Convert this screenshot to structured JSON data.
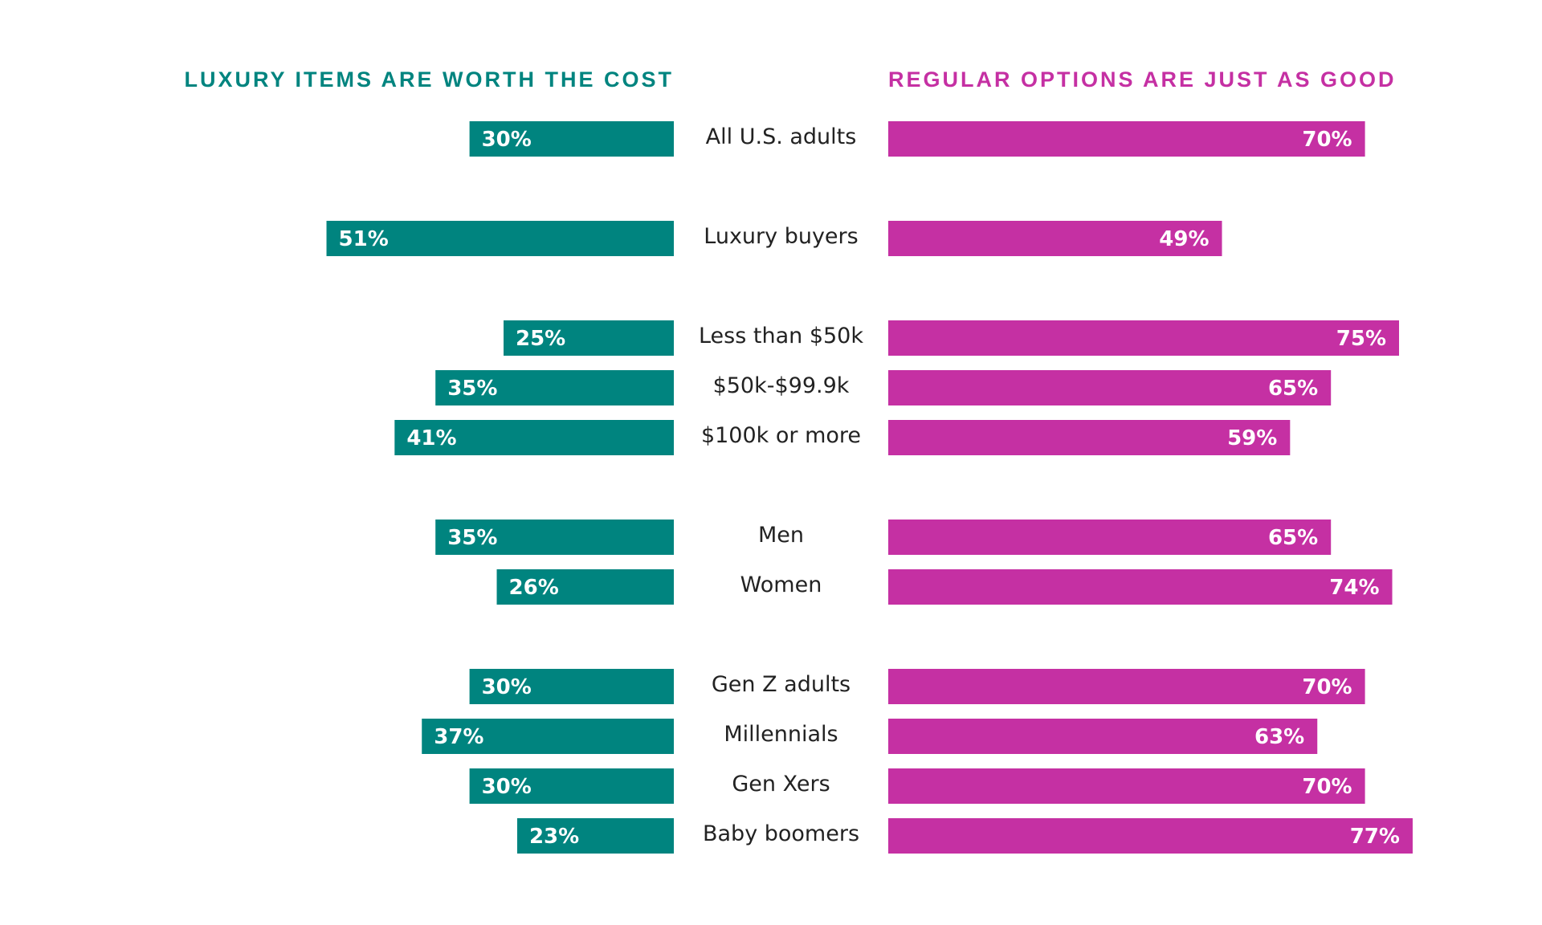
{
  "chart_data": {
    "type": "bar",
    "orientation": "diverging-horizontal",
    "title": "",
    "xlabel": "",
    "ylabel": "",
    "xlim": [
      0,
      100
    ],
    "grid": false,
    "legend": "none",
    "categories": [
      "All U.S. adults",
      "Luxury buyers",
      "Less than $50k",
      "$50k-$99.9k",
      "$100k or more",
      "Men",
      "Women",
      "Gen Z adults",
      "Millennials",
      "Gen Xers",
      "Baby boomers"
    ],
    "groups": [
      [
        0
      ],
      [
        1
      ],
      [
        2,
        3,
        4
      ],
      [
        5,
        6
      ],
      [
        7,
        8,
        9,
        10
      ]
    ],
    "series": [
      {
        "name": "LUXURY ITEMS ARE WORTH THE COST",
        "color": "#00847f",
        "values": [
          30,
          51,
          25,
          35,
          41,
          35,
          26,
          30,
          37,
          30,
          23
        ],
        "labels": [
          "30%",
          "51%",
          "25%",
          "35%",
          "41%",
          "35%",
          "26%",
          "30%",
          "37%",
          "30%",
          "23%"
        ]
      },
      {
        "name": "REGULAR OPTIONS ARE JUST AS GOOD",
        "color": "#c530a3",
        "values": [
          70,
          49,
          75,
          65,
          59,
          65,
          74,
          70,
          63,
          70,
          77
        ],
        "labels": [
          "70%",
          "49%",
          "75%",
          "65%",
          "59%",
          "65%",
          "74%",
          "70%",
          "63%",
          "70%",
          "77%"
        ]
      }
    ]
  }
}
